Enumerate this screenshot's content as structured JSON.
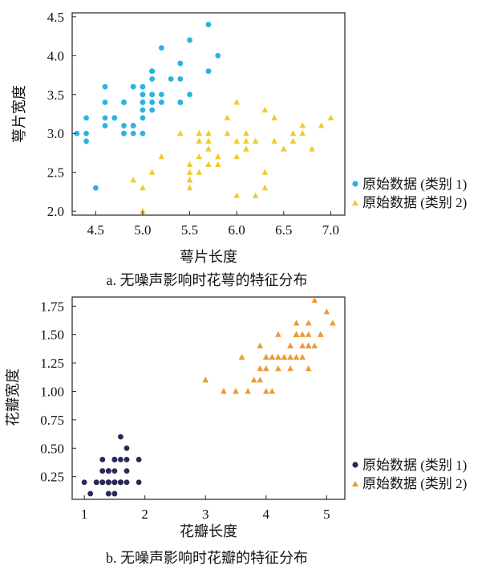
{
  "chart_data": [
    {
      "type": "scatter",
      "caption": "a. 无噪声影响时花萼的特征分布",
      "xlabel": "萼片长度",
      "ylabel": "萼片宽度",
      "xlim": [
        4.25,
        7.15
      ],
      "ylim": [
        1.95,
        4.55
      ],
      "xticks": [
        4.5,
        5.0,
        5.5,
        6.0,
        6.5,
        7.0
      ],
      "xtick_labels": [
        "4.5",
        "5.0",
        "5.5",
        "6.0",
        "6.5",
        "7.0"
      ],
      "yticks": [
        2.0,
        2.5,
        3.0,
        3.5,
        4.0,
        4.5
      ],
      "ytick_labels": [
        "2.0",
        "2.5",
        "3.0",
        "3.5",
        "4.0",
        "4.5"
      ],
      "legend_position": "right",
      "series": [
        {
          "name": "原始数据 (类别 1)",
          "marker": "circle",
          "color": "#2bb3e0",
          "points": [
            [
              5.1,
              3.5
            ],
            [
              4.9,
              3.0
            ],
            [
              4.7,
              3.2
            ],
            [
              4.6,
              3.1
            ],
            [
              5.0,
              3.6
            ],
            [
              5.4,
              3.9
            ],
            [
              4.6,
              3.4
            ],
            [
              5.0,
              3.4
            ],
            [
              4.4,
              2.9
            ],
            [
              4.9,
              3.1
            ],
            [
              5.4,
              3.7
            ],
            [
              4.8,
              3.4
            ],
            [
              4.8,
              3.0
            ],
            [
              4.3,
              3.0
            ],
            [
              5.8,
              4.0
            ],
            [
              5.7,
              4.4
            ],
            [
              5.4,
              3.9
            ],
            [
              5.1,
              3.5
            ],
            [
              5.7,
              3.8
            ],
            [
              5.1,
              3.8
            ],
            [
              5.4,
              3.4
            ],
            [
              5.1,
              3.7
            ],
            [
              4.6,
              3.6
            ],
            [
              5.1,
              3.3
            ],
            [
              4.8,
              3.4
            ],
            [
              5.0,
              3.0
            ],
            [
              5.0,
              3.4
            ],
            [
              5.2,
              3.5
            ],
            [
              5.2,
              3.4
            ],
            [
              4.7,
              3.2
            ],
            [
              4.8,
              3.1
            ],
            [
              5.4,
              3.4
            ],
            [
              5.2,
              4.1
            ],
            [
              5.5,
              4.2
            ],
            [
              4.9,
              3.1
            ],
            [
              5.0,
              3.2
            ],
            [
              5.5,
              3.5
            ],
            [
              4.9,
              3.6
            ],
            [
              4.4,
              3.0
            ],
            [
              5.1,
              3.4
            ],
            [
              5.0,
              3.5
            ],
            [
              4.5,
              2.3
            ],
            [
              4.4,
              3.2
            ],
            [
              5.0,
              3.5
            ],
            [
              5.1,
              3.8
            ],
            [
              4.8,
              3.0
            ],
            [
              5.1,
              3.8
            ],
            [
              4.6,
              3.2
            ],
            [
              5.3,
              3.7
            ],
            [
              5.0,
              3.3
            ]
          ]
        },
        {
          "name": "原始数据 (类别 2)",
          "marker": "triangle",
          "color": "#f0cb2e",
          "points": [
            [
              7.0,
              3.2
            ],
            [
              6.4,
              3.2
            ],
            [
              6.9,
              3.1
            ],
            [
              5.5,
              2.3
            ],
            [
              6.5,
              2.8
            ],
            [
              5.7,
              2.8
            ],
            [
              6.3,
              3.3
            ],
            [
              4.9,
              2.4
            ],
            [
              6.6,
              2.9
            ],
            [
              5.2,
              2.7
            ],
            [
              5.0,
              2.0
            ],
            [
              5.9,
              3.0
            ],
            [
              6.0,
              2.2
            ],
            [
              6.1,
              2.9
            ],
            [
              5.6,
              2.9
            ],
            [
              6.7,
              3.1
            ],
            [
              5.6,
              3.0
            ],
            [
              5.8,
              2.7
            ],
            [
              6.2,
              2.2
            ],
            [
              5.6,
              2.5
            ],
            [
              5.9,
              3.2
            ],
            [
              6.1,
              2.8
            ],
            [
              6.3,
              2.5
            ],
            [
              6.1,
              2.8
            ],
            [
              6.4,
              2.9
            ],
            [
              6.6,
              3.0
            ],
            [
              6.8,
              2.8
            ],
            [
              6.7,
              3.0
            ],
            [
              6.0,
              2.9
            ],
            [
              5.7,
              2.6
            ],
            [
              5.5,
              2.4
            ],
            [
              5.5,
              2.4
            ],
            [
              5.8,
              2.7
            ],
            [
              6.0,
              2.7
            ],
            [
              5.4,
              3.0
            ],
            [
              6.0,
              3.4
            ],
            [
              6.7,
              3.1
            ],
            [
              6.3,
              2.3
            ],
            [
              5.6,
              3.0
            ],
            [
              5.5,
              2.5
            ],
            [
              5.5,
              2.6
            ],
            [
              6.1,
              3.0
            ],
            [
              5.8,
              2.6
            ],
            [
              5.0,
              2.3
            ],
            [
              5.6,
              2.7
            ],
            [
              5.7,
              3.0
            ],
            [
              5.7,
              2.9
            ],
            [
              6.2,
              2.9
            ],
            [
              5.1,
              2.5
            ],
            [
              5.7,
              2.8
            ]
          ]
        }
      ]
    },
    {
      "type": "scatter",
      "caption": "b. 无噪声影响时花瓣的特征分布",
      "xlabel": "花瓣长度",
      "ylabel": "花瓣宽度",
      "xlim": [
        0.8,
        5.3
      ],
      "ylim": [
        0.05,
        1.83
      ],
      "xticks": [
        1,
        2,
        3,
        4,
        5
      ],
      "xtick_labels": [
        "1",
        "2",
        "3",
        "4",
        "5"
      ],
      "yticks": [
        0.25,
        0.5,
        0.75,
        1.0,
        1.25,
        1.5,
        1.75
      ],
      "ytick_labels": [
        "0.25",
        "0.50",
        "0.75",
        "1.00",
        "1.25",
        "1.50",
        "1.75"
      ],
      "legend_position": "right",
      "series": [
        {
          "name": "原始数据 (类别 1)",
          "marker": "circle",
          "color": "#262a55",
          "points": [
            [
              1.4,
              0.2
            ],
            [
              1.4,
              0.2
            ],
            [
              1.3,
              0.2
            ],
            [
              1.5,
              0.2
            ],
            [
              1.4,
              0.2
            ],
            [
              1.7,
              0.4
            ],
            [
              1.4,
              0.3
            ],
            [
              1.5,
              0.2
            ],
            [
              1.4,
              0.2
            ],
            [
              1.5,
              0.1
            ],
            [
              1.5,
              0.2
            ],
            [
              1.6,
              0.2
            ],
            [
              1.4,
              0.1
            ],
            [
              1.1,
              0.1
            ],
            [
              1.2,
              0.2
            ],
            [
              1.5,
              0.4
            ],
            [
              1.3,
              0.4
            ],
            [
              1.4,
              0.3
            ],
            [
              1.7,
              0.3
            ],
            [
              1.5,
              0.3
            ],
            [
              1.7,
              0.2
            ],
            [
              1.5,
              0.4
            ],
            [
              1.0,
              0.2
            ],
            [
              1.7,
              0.5
            ],
            [
              1.9,
              0.2
            ],
            [
              1.6,
              0.2
            ],
            [
              1.6,
              0.4
            ],
            [
              1.5,
              0.2
            ],
            [
              1.4,
              0.2
            ],
            [
              1.6,
              0.2
            ],
            [
              1.6,
              0.2
            ],
            [
              1.5,
              0.4
            ],
            [
              1.5,
              0.1
            ],
            [
              1.4,
              0.2
            ],
            [
              1.5,
              0.2
            ],
            [
              1.2,
              0.2
            ],
            [
              1.3,
              0.2
            ],
            [
              1.4,
              0.1
            ],
            [
              1.3,
              0.2
            ],
            [
              1.5,
              0.2
            ],
            [
              1.3,
              0.3
            ],
            [
              1.3,
              0.3
            ],
            [
              1.3,
              0.2
            ],
            [
              1.6,
              0.6
            ],
            [
              1.9,
              0.4
            ],
            [
              1.4,
              0.3
            ],
            [
              1.6,
              0.2
            ],
            [
              1.4,
              0.2
            ],
            [
              1.5,
              0.2
            ],
            [
              1.4,
              0.2
            ]
          ]
        },
        {
          "name": "原始数据 (类别 2)",
          "marker": "triangle",
          "color": "#ee9a34",
          "points": [
            [
              4.7,
              1.4
            ],
            [
              4.5,
              1.5
            ],
            [
              4.9,
              1.5
            ],
            [
              4.0,
              1.3
            ],
            [
              4.6,
              1.5
            ],
            [
              4.5,
              1.3
            ],
            [
              4.7,
              1.6
            ],
            [
              3.3,
              1.0
            ],
            [
              4.6,
              1.3
            ],
            [
              3.9,
              1.4
            ],
            [
              3.5,
              1.0
            ],
            [
              4.2,
              1.5
            ],
            [
              4.0,
              1.0
            ],
            [
              4.7,
              1.4
            ],
            [
              3.6,
              1.3
            ],
            [
              4.4,
              1.4
            ],
            [
              4.5,
              1.5
            ],
            [
              4.1,
              1.0
            ],
            [
              4.5,
              1.5
            ],
            [
              3.9,
              1.1
            ],
            [
              4.8,
              1.8
            ],
            [
              4.0,
              1.3
            ],
            [
              4.9,
              1.5
            ],
            [
              4.7,
              1.2
            ],
            [
              4.3,
              1.3
            ],
            [
              4.4,
              1.4
            ],
            [
              4.8,
              1.4
            ],
            [
              5.0,
              1.7
            ],
            [
              4.5,
              1.5
            ],
            [
              3.5,
              1.0
            ],
            [
              3.8,
              1.1
            ],
            [
              3.7,
              1.0
            ],
            [
              3.9,
              1.2
            ],
            [
              5.1,
              1.6
            ],
            [
              4.5,
              1.5
            ],
            [
              4.5,
              1.6
            ],
            [
              4.7,
              1.5
            ],
            [
              4.4,
              1.3
            ],
            [
              4.1,
              1.3
            ],
            [
              4.0,
              1.3
            ],
            [
              4.4,
              1.2
            ],
            [
              4.6,
              1.4
            ],
            [
              4.0,
              1.2
            ],
            [
              3.3,
              1.0
            ],
            [
              4.2,
              1.3
            ],
            [
              4.2,
              1.2
            ],
            [
              4.2,
              1.3
            ],
            [
              4.3,
              1.3
            ],
            [
              3.0,
              1.1
            ],
            [
              4.1,
              1.3
            ]
          ]
        }
      ]
    }
  ]
}
